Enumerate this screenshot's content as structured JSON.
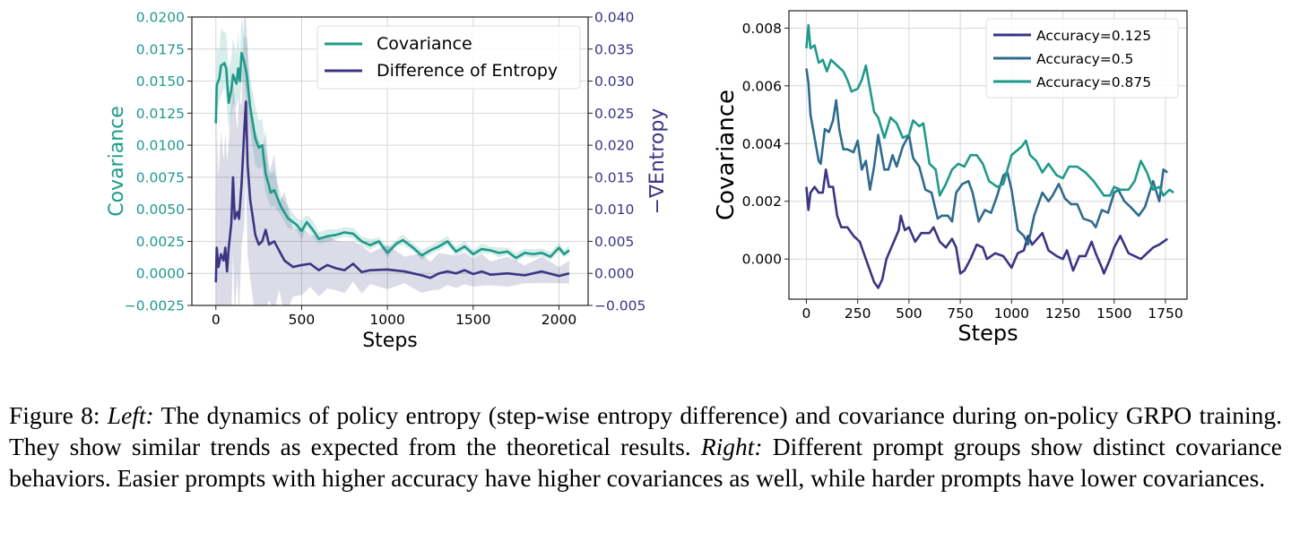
{
  "chart_data": [
    {
      "type": "line",
      "panel": "left",
      "xlabel": "Steps",
      "ylabel": "Covariance",
      "ylabel_right": "−∇Entropy",
      "xlim": [
        -140,
        2170
      ],
      "ylim": [
        -0.0025,
        0.02
      ],
      "ylim_right": [
        -0.005,
        0.04
      ],
      "xticks": [
        "0",
        "500",
        "1000",
        "1500",
        "2000"
      ],
      "xtick_values": [
        0,
        500,
        1000,
        1500,
        2000
      ],
      "yticks": [
        "−0.0025",
        "0.0000",
        "0.0025",
        "0.0050",
        "0.0075",
        "0.0100",
        "0.0125",
        "0.0150",
        "0.0175",
        "0.0200"
      ],
      "ytick_values": [
        -0.0025,
        0,
        0.0025,
        0.005,
        0.0075,
        0.01,
        0.0125,
        0.015,
        0.0175,
        0.02
      ],
      "yticks_right": [
        "−0.005",
        "0.000",
        "0.005",
        "0.010",
        "0.015",
        "0.020",
        "0.025",
        "0.030",
        "0.035",
        "0.040"
      ],
      "ytick_values_right": [
        -0.005,
        0,
        0.005,
        0.01,
        0.015,
        0.02,
        0.025,
        0.03,
        0.035,
        0.04
      ],
      "grid": true,
      "legend_position": "top-right",
      "ylabel_color": "#1f9a8a",
      "ylabel_right_color": "#3b3582",
      "series": [
        {
          "name": "Covariance",
          "axis": "left",
          "color": "#1f9a8a",
          "x": [
            0,
            5,
            20,
            30,
            50,
            60,
            75,
            90,
            100,
            120,
            130,
            140,
            150,
            165,
            180,
            200,
            230,
            250,
            270,
            290,
            320,
            340,
            380,
            420,
            470,
            500,
            530,
            560,
            600,
            650,
            700,
            750,
            800,
            850,
            900,
            950,
            1000,
            1050,
            1090,
            1150,
            1200,
            1250,
            1300,
            1350,
            1400,
            1450,
            1500,
            1550,
            1600,
            1650,
            1700,
            1750,
            1800,
            1850,
            1900,
            1950,
            2000,
            2030,
            2060
          ],
          "y": [
            0.0117,
            0.0147,
            0.0152,
            0.0162,
            0.0164,
            0.016,
            0.0133,
            0.0143,
            0.0155,
            0.0148,
            0.016,
            0.015,
            0.0172,
            0.0165,
            0.0155,
            0.013,
            0.0105,
            0.0098,
            0.01,
            0.0078,
            0.0063,
            0.0065,
            0.0052,
            0.0043,
            0.0038,
            0.0033,
            0.004,
            0.0035,
            0.0027,
            0.0029,
            0.003,
            0.0032,
            0.0031,
            0.0025,
            0.0022,
            0.0025,
            0.0016,
            0.0023,
            0.0026,
            0.002,
            0.0014,
            0.0018,
            0.0021,
            0.0025,
            0.0017,
            0.0021,
            0.0015,
            0.0019,
            0.0018,
            0.0016,
            0.0017,
            0.0012,
            0.0016,
            0.0015,
            0.0016,
            0.0013,
            0.002,
            0.0015,
            0.0018
          ],
          "band_halfwidth": [
            [
              0,
              0.003
            ],
            [
              200,
              0.003
            ],
            [
              400,
              0.001
            ],
            [
              700,
              0.0005
            ],
            [
              2060,
              0.0004
            ]
          ]
        },
        {
          "name": "Difference of Entropy",
          "axis": "right",
          "color": "#3b3582",
          "x": [
            0,
            5,
            15,
            30,
            45,
            55,
            65,
            75,
            90,
            100,
            110,
            125,
            135,
            150,
            165,
            175,
            185,
            200,
            230,
            250,
            270,
            290,
            310,
            340,
            370,
            400,
            450,
            500,
            550,
            600,
            650,
            700,
            750,
            800,
            850,
            900,
            1000,
            1100,
            1200,
            1250,
            1300,
            1350,
            1400,
            1450,
            1500,
            1550,
            1600,
            1700,
            1800,
            1900,
            2000,
            2060
          ],
          "y": [
            -0.0014,
            0.004,
            0.001,
            0.003,
            0.002,
            0.004,
            0.0003,
            0.004,
            0.0078,
            0.015,
            0.0085,
            0.0096,
            0.0085,
            0.014,
            0.022,
            0.0268,
            0.017,
            0.0115,
            0.006,
            0.0045,
            0.005,
            0.0068,
            0.0045,
            0.005,
            0.0035,
            0.002,
            0.001,
            0.0013,
            0.0015,
            0.0005,
            0.0013,
            0.0008,
            0.0005,
            0.0015,
            0.0002,
            0.0005,
            0.0006,
            0.0003,
            -0.0003,
            -0.0007,
            0,
            0.0003,
            0,
            0.0005,
            -0.0001,
            0.0003,
            -0.0002,
            0,
            -0.0003,
            0.0003,
            -0.0004,
            0
          ],
          "band_halfwidth": [
            [
              0,
              0.02
            ],
            [
              250,
              0.018
            ],
            [
              500,
              0.006
            ],
            [
              900,
              0.004
            ],
            [
              2060,
              0.002
            ]
          ]
        }
      ]
    },
    {
      "type": "line",
      "panel": "right",
      "xlabel": "Steps",
      "ylabel": "Covariance",
      "xlim": [
        -85,
        1855
      ],
      "ylim": [
        -0.00139,
        0.0086
      ],
      "xticks": [
        "0",
        "250",
        "500",
        "750",
        "1000",
        "1250",
        "1500",
        "1750"
      ],
      "xtick_values": [
        0,
        250,
        500,
        750,
        1000,
        1250,
        1500,
        1750
      ],
      "yticks": [
        "0.000",
        "0.002",
        "0.004",
        "0.006",
        "0.008"
      ],
      "ytick_values": [
        0,
        0.002,
        0.004,
        0.006,
        0.008
      ],
      "grid": true,
      "legend_position": "top-right",
      "series": [
        {
          "name": "Accuracy=0.125",
          "color": "#3b3582",
          "x": [
            0,
            10,
            20,
            40,
            60,
            80,
            95,
            110,
            130,
            150,
            170,
            200,
            230,
            260,
            280,
            300,
            330,
            350,
            370,
            390,
            420,
            450,
            460,
            480,
            500,
            530,
            560,
            600,
            620,
            650,
            680,
            710,
            730,
            750,
            770,
            800,
            830,
            860,
            880,
            920,
            960,
            1000,
            1030,
            1060,
            1080,
            1100,
            1150,
            1180,
            1220,
            1250,
            1270,
            1300,
            1330,
            1360,
            1390,
            1410,
            1440,
            1450,
            1480,
            1500,
            1530,
            1570,
            1600,
            1630,
            1660,
            1690,
            1720,
            1760
          ],
          "y": [
            0.0025,
            0.0017,
            0.0023,
            0.0025,
            0.0023,
            0.0023,
            0.0031,
            0.0025,
            0.0025,
            0.0015,
            0.0011,
            0.0011,
            0.0008,
            0.0006,
            0.0002,
            -0.0002,
            -0.0008,
            -0.001,
            -0.0007,
            0,
            0.0005,
            0.001,
            0.0015,
            0.001,
            0.0011,
            0.0006,
            0.0009,
            0.0009,
            0.0011,
            0.0006,
            0.0004,
            0.0007,
            0.0004,
            -0.0005,
            -0.0004,
            0,
            0.0005,
            0.0004,
            0,
            0.0002,
            0.0001,
            -0.0003,
            0.0002,
            0.0003,
            0.0008,
            0.0005,
            0.0009,
            0.0003,
            0.0001,
            0,
            0.0003,
            -0.0004,
            0.0001,
            0.0001,
            0.0006,
            0.0002,
            -0.0003,
            -0.0005,
            0,
            0.0004,
            0.0008,
            0.0002,
            0.0001,
            0,
            0.0002,
            0.0004,
            0.0005,
            0.0007
          ]
        },
        {
          "name": "Accuracy=0.5",
          "color": "#2f6b8e",
          "x": [
            0,
            10,
            20,
            40,
            60,
            70,
            90,
            110,
            130,
            145,
            160,
            180,
            200,
            230,
            250,
            270,
            290,
            310,
            330,
            350,
            380,
            400,
            420,
            440,
            470,
            500,
            520,
            550,
            580,
            610,
            640,
            660,
            690,
            710,
            730,
            760,
            790,
            810,
            840,
            870,
            900,
            930,
            960,
            980,
            1000,
            1030,
            1060,
            1080,
            1110,
            1150,
            1180,
            1200,
            1230,
            1260,
            1290,
            1320,
            1350,
            1390,
            1410,
            1440,
            1470,
            1500,
            1520,
            1550,
            1580,
            1620,
            1650,
            1690,
            1720,
            1740,
            1760
          ],
          "y": [
            0.0066,
            0.0061,
            0.005,
            0.0042,
            0.0034,
            0.0033,
            0.0045,
            0.0044,
            0.0048,
            0.0055,
            0.0045,
            0.0038,
            0.0038,
            0.0037,
            0.0041,
            0.0031,
            0.0034,
            0.0024,
            0.0032,
            0.0043,
            0.0031,
            0.0031,
            0.0036,
            0.0032,
            0.0039,
            0.0043,
            0.0035,
            0.0032,
            0.0024,
            0.0023,
            0.0014,
            0.0015,
            0.0015,
            0.0013,
            0.0023,
            0.0026,
            0.0027,
            0.0023,
            0.0013,
            0.0017,
            0.0016,
            0.0022,
            0.0029,
            0.003,
            0.0024,
            0.001,
            0.0008,
            0.0005,
            0.0015,
            0.0023,
            0.002,
            0.0022,
            0.0026,
            0.0021,
            0.0019,
            0.0019,
            0.0014,
            0.0013,
            0.0011,
            0.0017,
            0.0016,
            0.0023,
            0.0024,
            0.002,
            0.0018,
            0.0015,
            0.0018,
            0.0027,
            0.002,
            0.0031,
            0.003
          ]
        },
        {
          "name": "Accuracy=0.875",
          "color": "#1f9a8a",
          "x": [
            0,
            10,
            20,
            40,
            60,
            80,
            100,
            120,
            150,
            180,
            200,
            220,
            250,
            270,
            290,
            310,
            330,
            350,
            380,
            410,
            440,
            470,
            500,
            520,
            550,
            570,
            600,
            630,
            650,
            680,
            710,
            740,
            770,
            800,
            830,
            860,
            890,
            930,
            960,
            1000,
            1050,
            1070,
            1090,
            1120,
            1150,
            1180,
            1220,
            1250,
            1280,
            1320,
            1360,
            1400,
            1430,
            1450,
            1480,
            1500,
            1530,
            1570,
            1600,
            1630,
            1660,
            1690,
            1720,
            1740,
            1770,
            1790
          ],
          "y": [
            0.0073,
            0.0081,
            0.0073,
            0.0074,
            0.0068,
            0.0069,
            0.0065,
            0.0069,
            0.0067,
            0.0065,
            0.0062,
            0.0058,
            0.0059,
            0.0062,
            0.0067,
            0.0059,
            0.0051,
            0.0049,
            0.0042,
            0.0049,
            0.0047,
            0.0042,
            0.0043,
            0.0048,
            0.0046,
            0.0047,
            0.0033,
            0.0031,
            0.0022,
            0.0026,
            0.0031,
            0.0033,
            0.0032,
            0.0036,
            0.0036,
            0.0033,
            0.0027,
            0.0025,
            0.0026,
            0.0036,
            0.0039,
            0.0041,
            0.0036,
            0.0034,
            0.003,
            0.0033,
            0.0029,
            0.0028,
            0.0032,
            0.0032,
            0.003,
            0.0027,
            0.0024,
            0.0022,
            0.0022,
            0.0025,
            0.0024,
            0.0024,
            0.0027,
            0.0034,
            0.003,
            0.0024,
            0.0025,
            0.0022,
            0.0024,
            0.0023
          ]
        }
      ]
    }
  ],
  "caption": {
    "figure_label": "Figure 8:",
    "left_label": "Left:",
    "left_text": "The dynamics of policy entropy (step-wise entropy difference) and covariance during on-policy GRPO training. They show similar trends as expected from the theoretical results.",
    "right_label": "Right:",
    "right_text": "Different prompt groups show distinct covariance behaviors. Easier prompts with higher accuracy have higher covariances as well, while harder prompts have lower covariances."
  }
}
